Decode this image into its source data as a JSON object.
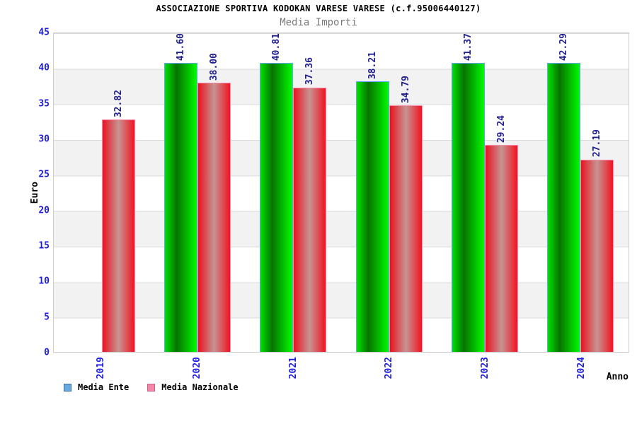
{
  "header": {
    "title": "ASSOCIAZIONE SPORTIVA KODOKAN VARESE VARESE (c.f.95006440127)",
    "subtitle": "Media Importi"
  },
  "chart_data": {
    "type": "bar",
    "categories": [
      "2019",
      "2020",
      "2021",
      "2022",
      "2023",
      "2024"
    ],
    "series": [
      {
        "name": "Media Ente",
        "values": [
          null,
          41.6,
          40.81,
          38.21,
          41.37,
          42.29
        ]
      },
      {
        "name": "Media Nazionale",
        "values": [
          32.82,
          38.0,
          37.36,
          34.79,
          29.24,
          27.19
        ]
      }
    ],
    "xlabel": "Anno",
    "ylabel": "Euro",
    "ylim": [
      0,
      45
    ],
    "ytick_step": 5,
    "value_label_decimals": 2,
    "grid": "horizontal-bands-alternating",
    "legend_position": "bottom-left"
  },
  "colors": {
    "tick_label": "#1d1de0",
    "value_label": "#1f1f90",
    "title": "#000000",
    "subtitle": "#7a7a7a",
    "band_gray": "#f2f2f2",
    "grid_line": "#d9d9d9",
    "plot_border": "#cfcfcf",
    "green_bar_gradient": [
      "#00e100",
      "#077300",
      "#00fb00"
    ],
    "green_bar_border": "#63a5f8",
    "red_bar_gradient": [
      "#e9131f",
      "#c69493",
      "#f21321"
    ],
    "red_bar_border": "#ff8fae",
    "legend_ente_fill": "#69a8e0",
    "legend_ente_border": "#3b6ea5",
    "legend_nazionale_fill": "#f287a8",
    "legend_nazionale_border": "#c7608a"
  }
}
